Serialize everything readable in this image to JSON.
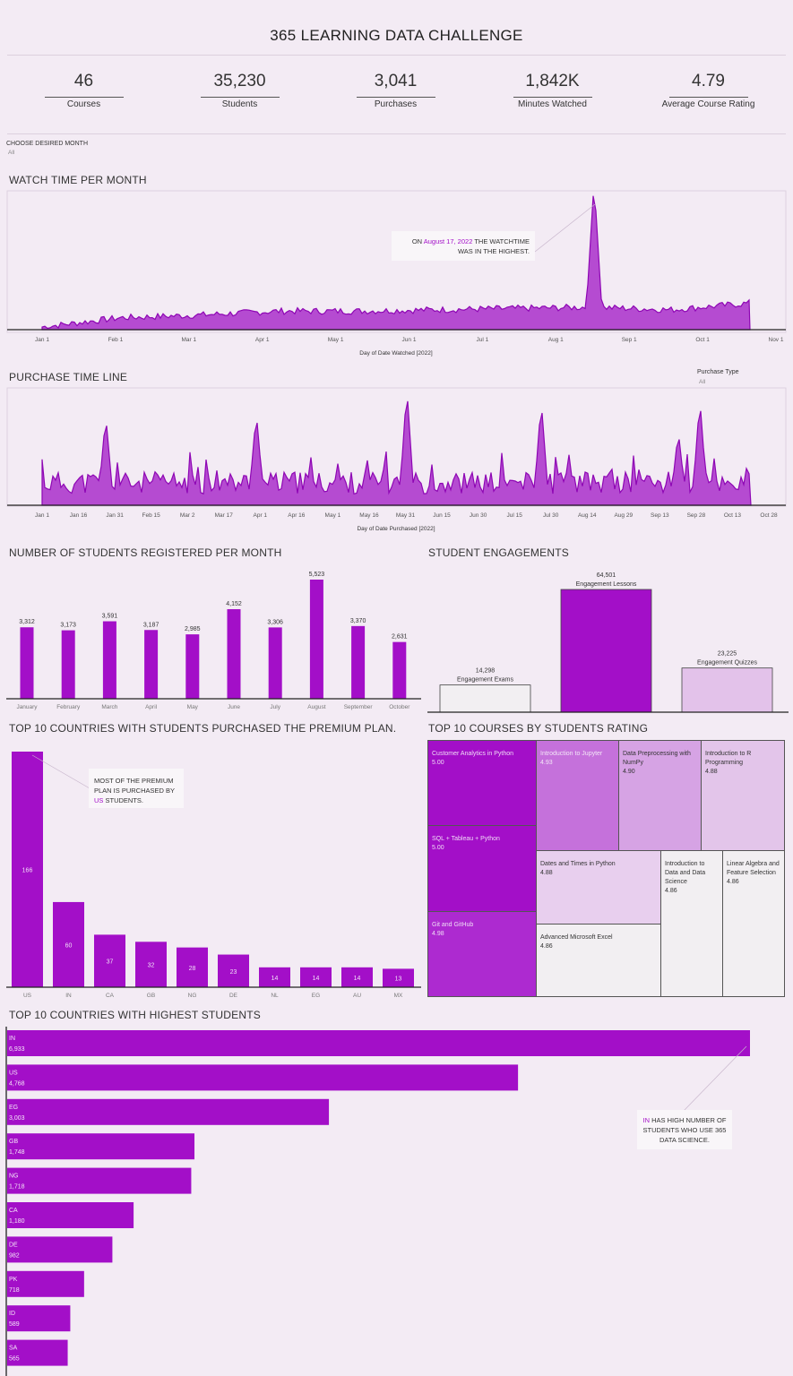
{
  "title": "365 LEARNING DATA CHALLENGE",
  "kpis": [
    {
      "value": "46",
      "label": "Courses"
    },
    {
      "value": "35,230",
      "label": "Students"
    },
    {
      "value": "3,041",
      "label": "Purchases"
    },
    {
      "value": "1,842K",
      "label": "Minutes Watched"
    },
    {
      "value": "4.79",
      "label": "Average Course Rating"
    }
  ],
  "filters": {
    "month_label": "CHOOSE DESIRED MONTH",
    "month_value": "All",
    "purchase_label": "Purchase Type",
    "purchase_value": "All"
  },
  "colors": {
    "accent": "#a30fc8",
    "accent_light": "#d6a3e4",
    "bg": "#f3ebf4"
  },
  "sections": {
    "watch": "WATCH TIME PER MONTH",
    "purchase": "PURCHASE TIME LINE",
    "registered": "NUMBER OF STUDENTS REGISTERED PER MONTH",
    "engagement": "STUDENT ENGAGEMENTS",
    "premium": "TOP 10 COUNTRIES WITH STUDENTS PURCHASED THE PREMIUM PLAN.",
    "courses": "TOP 10 COURSES BY STUDENTS RATING",
    "highest": "TOP 10 COUNTRIES WITH HIGHEST STUDENTS"
  },
  "callouts": {
    "watch_pre": "ON",
    "watch_date": "August 17, 2022",
    "watch_post": "THE WATCHTIME",
    "watch_line2": "WAS IN THE HIGHEST.",
    "premium_line1": "MOST OF THE PREMIUM",
    "premium_line2": "PLAN IS PURCHASED BY",
    "premium_us": "US",
    "premium_post": "STUDENTS.",
    "highest_in": "IN",
    "highest_line1": "HAS HIGH NUMBER OF",
    "highest_line2": "STUDENTS WHO USE 365",
    "highest_line3": "DATA SCIENCE."
  },
  "chart_data": [
    {
      "type": "area",
      "title": "WATCH TIME PER MONTH",
      "xlabel": "Day of Date Watched [2022]",
      "x_ticks": [
        "Jan 1",
        "Feb 1",
        "Mar 1",
        "Apr 1",
        "May 1",
        "Jun 1",
        "Jul 1",
        "Aug 1",
        "Sep 1",
        "Oct 1",
        "Nov 1"
      ],
      "peak": {
        "date": "August 17, 2022",
        "relative_level": 1.0
      },
      "baseline_relative_level": [
        0.02,
        0.09,
        0.11,
        0.14,
        0.14,
        0.15,
        0.16,
        0.17,
        0.15,
        0.2
      ]
    },
    {
      "type": "area",
      "title": "PURCHASE TIME LINE",
      "xlabel": "Day of Date Purchased [2022]",
      "x_ticks": [
        "Jan 1",
        "Jan 16",
        "Jan 31",
        "Feb 15",
        "Mar 2",
        "Mar 17",
        "Apr 1",
        "Apr 16",
        "May 1",
        "May 16",
        "May 31",
        "Jun 15",
        "Jun 30",
        "Jul 15",
        "Jul 30",
        "Aug 14",
        "Aug 29",
        "Sep 13",
        "Sep 28",
        "Oct 13",
        "Oct 28"
      ]
    },
    {
      "type": "bar",
      "title": "NUMBER OF STUDENTS REGISTERED PER MONTH",
      "categories": [
        "January",
        "February",
        "March",
        "April",
        "May",
        "June",
        "July",
        "August",
        "September",
        "October"
      ],
      "values": [
        3312,
        3173,
        3591,
        3187,
        2985,
        4152,
        3306,
        5523,
        3370,
        2631
      ],
      "labels": [
        "3,312",
        "3,173",
        "3,591",
        "3,187",
        "2,985",
        "4,152",
        "3,306",
        "5,523",
        "3,370",
        "2,631"
      ]
    },
    {
      "type": "bar",
      "title": "STUDENT ENGAGEMENTS",
      "categories": [
        "Engagement Exams",
        "Engagement Lessons",
        "Engagement Quizzes"
      ],
      "values": [
        14298,
        64501,
        23225
      ],
      "labels": [
        "14,298",
        "64,501",
        "23,225"
      ],
      "colors": [
        "#f2eff2",
        "#a30fc8",
        "#e3c2ea"
      ]
    },
    {
      "type": "bar",
      "title": "TOP 10 COUNTRIES WITH STUDENTS PURCHASED THE PREMIUM PLAN.",
      "categories": [
        "US",
        "IN",
        "CA",
        "GB",
        "NG",
        "DE",
        "NL",
        "EG",
        "AU",
        "MX"
      ],
      "values": [
        166,
        60,
        37,
        32,
        28,
        23,
        14,
        14,
        14,
        13
      ]
    },
    {
      "type": "table",
      "title": "TOP 10 COURSES BY STUDENTS RATING",
      "courses": [
        {
          "name": "Customer Analytics in Python",
          "rating": "5.00"
        },
        {
          "name": "SQL + Tableau + Python",
          "rating": "5.00"
        },
        {
          "name": "Git and GitHub",
          "rating": "4.98"
        },
        {
          "name": "Introduction to Jupyter",
          "rating": "4.93"
        },
        {
          "name": "Data Preprocessing with NumPy",
          "rating": "4.90"
        },
        {
          "name": "Introduction to R Programming",
          "rating": "4.88"
        },
        {
          "name": "Dates and Times in Python",
          "rating": "4.88"
        },
        {
          "name": "Advanced Microsoft Excel",
          "rating": "4.86"
        },
        {
          "name": "Introduction to Data and Data Science",
          "rating": "4.86"
        },
        {
          "name": "Linear Algebra and Feature Selection",
          "rating": "4.86"
        }
      ]
    },
    {
      "type": "bar",
      "orientation": "horizontal",
      "title": "TOP 10 COUNTRIES WITH HIGHEST STUDENTS",
      "categories": [
        "IN",
        "US",
        "EG",
        "GB",
        "NG",
        "CA",
        "DE",
        "PK",
        "ID",
        "SA"
      ],
      "values": [
        6933,
        4768,
        3003,
        1748,
        1718,
        1180,
        982,
        718,
        589,
        565
      ],
      "labels": [
        "6,933",
        "4,768",
        "3,003",
        "1,748",
        "1,718",
        "1,180",
        "982",
        "718",
        "589",
        "565"
      ]
    }
  ]
}
